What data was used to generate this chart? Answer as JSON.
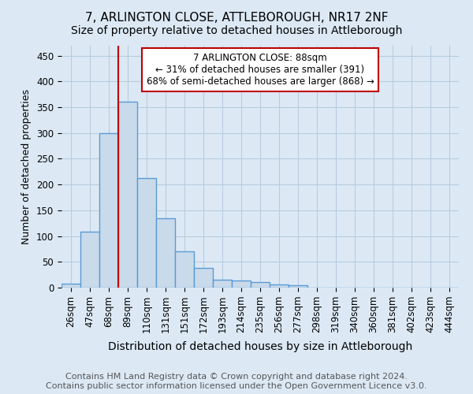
{
  "title": "7, ARLINGTON CLOSE, ATTLEBOROUGH, NR17 2NF",
  "subtitle": "Size of property relative to detached houses in Attleborough",
  "xlabel": "Distribution of detached houses by size in Attleborough",
  "ylabel": "Number of detached properties",
  "footer_line1": "Contains HM Land Registry data © Crown copyright and database right 2024.",
  "footer_line2": "Contains public sector information licensed under the Open Government Licence v3.0.",
  "bin_labels": [
    "26sqm",
    "47sqm",
    "68sqm",
    "89sqm",
    "110sqm",
    "131sqm",
    "151sqm",
    "172sqm",
    "193sqm",
    "214sqm",
    "235sqm",
    "256sqm",
    "277sqm",
    "298sqm",
    "319sqm",
    "340sqm",
    "360sqm",
    "381sqm",
    "402sqm",
    "423sqm",
    "444sqm"
  ],
  "bar_values": [
    8,
    108,
    300,
    360,
    212,
    135,
    70,
    38,
    15,
    13,
    11,
    6,
    5,
    0,
    0,
    0,
    0,
    0,
    0,
    0,
    0
  ],
  "bar_color": "#c9daea",
  "bar_edge_color": "#5b9bd5",
  "bar_edge_width": 1.0,
  "red_line_x": 3,
  "red_line_color": "#c00000",
  "annotation_text": "7 ARLINGTON CLOSE: 88sqm\n← 31% of detached houses are smaller (391)\n68% of semi-detached houses are larger (868) →",
  "annotation_box_color": "white",
  "annotation_box_edge_color": "#c00000",
  "annotation_fontsize": 8.5,
  "title_fontsize": 11,
  "subtitle_fontsize": 10,
  "xlabel_fontsize": 10,
  "ylabel_fontsize": 9,
  "tick_fontsize": 8.5,
  "footer_fontsize": 8,
  "ylim": [
    0,
    470
  ],
  "bg_color": "#dce9f5",
  "grid_color": "#b8ccde"
}
